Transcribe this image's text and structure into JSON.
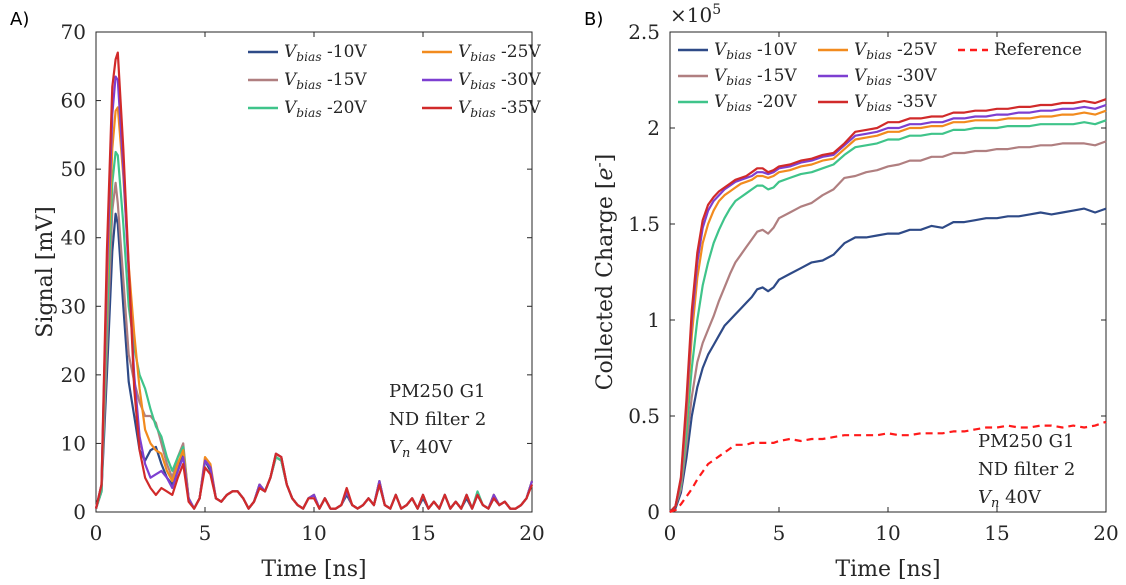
{
  "chart_data": [
    {
      "panel_label": "A)",
      "type": "line",
      "xlabel": "Time [ns]",
      "ylabel": "Signal [mV]",
      "xlim": [
        0,
        20
      ],
      "ylim": [
        0,
        70
      ],
      "xticks": [
        "0",
        "5",
        "10",
        "15",
        "20"
      ],
      "yticks": [
        "0",
        "10",
        "20",
        "30",
        "40",
        "50",
        "60",
        "70"
      ],
      "grid": false,
      "legend": "top-right",
      "annotations": [
        "PM250 G1",
        "ND filter 2",
        "V_n 40V"
      ],
      "x": [
        0,
        0.25,
        0.5,
        0.75,
        0.9,
        1.0,
        1.25,
        1.5,
        1.75,
        2.0,
        2.25,
        2.5,
        2.75,
        3.0,
        3.25,
        3.5,
        3.75,
        4.0,
        4.25,
        4.5,
        4.75,
        5.0,
        5.25,
        5.5,
        5.75,
        6.0,
        6.25,
        6.5,
        6.75,
        7.0,
        7.25,
        7.5,
        7.75,
        8.0,
        8.25,
        8.5,
        8.75,
        9.0,
        9.25,
        9.5,
        9.75,
        10.0,
        10.25,
        10.5,
        10.75,
        11.0,
        11.25,
        11.5,
        11.75,
        12.0,
        12.25,
        12.5,
        12.75,
        13.0,
        13.25,
        13.5,
        13.75,
        14.0,
        14.25,
        14.5,
        14.75,
        15.0,
        15.25,
        15.5,
        15.75,
        16.0,
        16.25,
        16.5,
        16.75,
        17.0,
        17.25,
        17.5,
        17.75,
        18.0,
        18.25,
        18.5,
        18.75,
        19.0,
        19.25,
        19.5,
        19.75,
        20.0
      ],
      "series": [
        {
          "name": "V_bias -10V",
          "color": "#2e4a87",
          "dash": false,
          "values": [
            0.5,
            3,
            20,
            38,
            43.5,
            42,
            30,
            19,
            14,
            9,
            7.5,
            9,
            9.5,
            7,
            5,
            4,
            6,
            8.5,
            2,
            0.5,
            2,
            7.5,
            6,
            2,
            1.5,
            2.5,
            3,
            3,
            2,
            0.5,
            1.5,
            3.5,
            3,
            5,
            8,
            7.5,
            4,
            2,
            1,
            0.5,
            2,
            2.5,
            0.5,
            2,
            0.5,
            0.5,
            1,
            2.5,
            1,
            0.5,
            1,
            2,
            1,
            4,
            1,
            0.5,
            2.5,
            0.5,
            1,
            2,
            0.5,
            2,
            0.5,
            1.5,
            0.5,
            2.5,
            0.5,
            1.5,
            0.5,
            2,
            0.5,
            2.5,
            1,
            0.5,
            2,
            1,
            1.5,
            0.5,
            0.5,
            1,
            2,
            4.5
          ]
        },
        {
          "name": "V_bias -15V",
          "color": "#b07f80",
          "dash": false,
          "values": [
            0.5,
            3,
            24,
            44,
            48,
            45,
            34,
            23,
            19,
            16,
            14,
            14,
            13,
            10,
            7,
            5,
            8,
            10,
            2,
            0.5,
            2,
            7.5,
            6.5,
            2,
            1.5,
            2.5,
            3,
            3,
            2,
            0.5,
            1.5,
            4,
            3,
            5,
            8,
            7.5,
            4,
            2,
            1,
            0.5,
            2,
            2.5,
            0.5,
            2,
            0.5,
            0.5,
            1,
            3,
            1,
            0.5,
            1,
            2,
            1,
            4.5,
            1,
            0.5,
            2.5,
            0.5,
            1,
            2,
            0.5,
            2.5,
            0.5,
            1.5,
            0.5,
            2.5,
            0.5,
            1.5,
            0.5,
            2.5,
            0.5,
            2.5,
            1,
            0.5,
            2.5,
            1,
            1.5,
            0.5,
            0.5,
            1,
            2,
            4.5
          ]
        },
        {
          "name": "V_bias -20V",
          "color": "#3fc48a",
          "dash": false,
          "values": [
            0.5,
            3,
            28,
            48,
            52.5,
            52,
            42,
            30,
            24,
            20,
            18,
            15,
            12.5,
            11,
            8,
            6,
            8,
            9.5,
            2,
            0.5,
            2,
            7.5,
            6.5,
            2,
            1.5,
            2.5,
            3,
            3,
            2,
            0.5,
            1.5,
            4,
            3,
            5,
            8,
            7.5,
            4,
            2,
            1,
            0.5,
            2,
            2.5,
            0.5,
            2,
            0.5,
            0.5,
            1,
            3,
            1,
            0.5,
            1,
            2,
            1,
            4.5,
            1,
            0.5,
            2.5,
            0.5,
            1,
            2,
            0.5,
            2.5,
            0.5,
            1.5,
            0.5,
            2.5,
            0.5,
            1.5,
            0.5,
            2.5,
            0.5,
            3,
            1,
            0.5,
            2.5,
            1,
            1.5,
            0.5,
            0.5,
            1,
            2,
            4.5
          ]
        },
        {
          "name": "V_bias -25V",
          "color": "#f28b1e",
          "dash": false,
          "values": [
            0.5,
            4,
            32,
            53,
            58.5,
            59,
            49,
            36,
            26,
            18,
            12,
            10,
            9,
            8.5,
            6,
            4.5,
            7,
            9,
            2,
            0.5,
            2,
            8,
            7,
            2,
            1.5,
            2.5,
            3,
            3,
            2,
            0.5,
            1.5,
            4,
            3,
            5,
            8.5,
            8,
            4,
            2,
            1,
            0.5,
            2,
            2.5,
            0.5,
            2,
            0.5,
            0.5,
            1,
            3,
            1,
            0.5,
            1,
            2,
            1,
            4.5,
            1,
            0.5,
            2.5,
            0.5,
            1,
            2,
            0.5,
            2.5,
            0.5,
            1.5,
            0.5,
            2.5,
            0.5,
            1.5,
            0.5,
            2.5,
            0.5,
            2.5,
            1,
            0.5,
            2.5,
            1,
            1.5,
            0.5,
            0.5,
            1,
            2,
            4.5
          ]
        },
        {
          "name": "V_bias -30V",
          "color": "#7d3fd1",
          "dash": false,
          "values": [
            0.5,
            4,
            35,
            58,
            63.5,
            63,
            50,
            35,
            20,
            11,
            7,
            5,
            5.5,
            6,
            5,
            3.5,
            6,
            8,
            2,
            0.5,
            2,
            7.5,
            6.5,
            2,
            1.5,
            2.5,
            3,
            3,
            2,
            0.5,
            1.5,
            4,
            3,
            5,
            8.5,
            8,
            4,
            2,
            1,
            0.5,
            2,
            2.5,
            0.5,
            2,
            0.5,
            0.5,
            1,
            3,
            1,
            0.5,
            1,
            2,
            1,
            4.5,
            1,
            0.5,
            2.5,
            0.5,
            1,
            2,
            0.5,
            2.5,
            0.5,
            1.5,
            0.5,
            2.5,
            0.5,
            1.5,
            0.5,
            2.5,
            0.5,
            2.5,
            1,
            0.5,
            2.5,
            1,
            1.5,
            0.5,
            0.5,
            1,
            2,
            4.5
          ]
        },
        {
          "name": "V_bias -35V",
          "color": "#d12a2a",
          "dash": false,
          "values": [
            0.5,
            4,
            38,
            62,
            66,
            67,
            53,
            36,
            18,
            9,
            5,
            3.5,
            2.5,
            3.5,
            3,
            2.5,
            5,
            7,
            1.5,
            0.5,
            2,
            6.5,
            5.5,
            2,
            1.5,
            2.5,
            3,
            3,
            2,
            0.5,
            1.5,
            3.5,
            3,
            5,
            8.5,
            8,
            4,
            2,
            1,
            0.5,
            2,
            2,
            0.5,
            2,
            0.5,
            0.5,
            1,
            3.5,
            1,
            0.5,
            1,
            2,
            1,
            4,
            1,
            0.5,
            2.5,
            0.5,
            1,
            2,
            0.5,
            2.5,
            0.5,
            1.5,
            0.5,
            2.5,
            0.5,
            1.5,
            0.5,
            2.5,
            0.5,
            2.5,
            1,
            0.5,
            2,
            1,
            1.5,
            0.5,
            0.5,
            1,
            2,
            4
          ]
        }
      ]
    },
    {
      "panel_label": "B)",
      "type": "line",
      "xlabel": "Time [ns]",
      "ylabel": "Collected Charge [e^-]",
      "multiplier": "×10^5",
      "xlim": [
        0,
        20
      ],
      "ylim": [
        0,
        2.5
      ],
      "xticks": [
        "0",
        "5",
        "10",
        "15",
        "20"
      ],
      "yticks": [
        "0",
        "0.5",
        "1",
        "1.5",
        "2",
        "2.5"
      ],
      "grid": false,
      "legend": "top-right",
      "annotations": [
        "PM250 G1",
        "ND filter 2",
        "V_n 40V"
      ],
      "x": [
        0,
        0.25,
        0.5,
        0.75,
        1.0,
        1.25,
        1.5,
        1.75,
        2.0,
        2.25,
        2.5,
        2.75,
        3.0,
        3.25,
        3.5,
        3.75,
        4.0,
        4.25,
        4.5,
        4.75,
        5.0,
        5.5,
        6.0,
        6.5,
        7.0,
        7.5,
        8.0,
        8.5,
        9.0,
        9.5,
        10.0,
        10.5,
        11.0,
        11.5,
        12.0,
        12.5,
        13.0,
        13.5,
        14.0,
        14.5,
        15.0,
        15.5,
        16.0,
        16.5,
        17.0,
        17.5,
        18.0,
        18.5,
        19.0,
        19.5,
        20.0
      ],
      "series": [
        {
          "name": "V_bias -10V",
          "color": "#2e4a87",
          "dash": false,
          "values": [
            0,
            0.02,
            0.1,
            0.28,
            0.5,
            0.65,
            0.75,
            0.82,
            0.87,
            0.92,
            0.97,
            1.0,
            1.03,
            1.06,
            1.09,
            1.12,
            1.16,
            1.17,
            1.15,
            1.17,
            1.21,
            1.24,
            1.27,
            1.3,
            1.31,
            1.34,
            1.4,
            1.43,
            1.43,
            1.44,
            1.45,
            1.45,
            1.47,
            1.47,
            1.49,
            1.48,
            1.51,
            1.51,
            1.52,
            1.53,
            1.53,
            1.54,
            1.54,
            1.55,
            1.56,
            1.55,
            1.56,
            1.57,
            1.58,
            1.56,
            1.58
          ]
        },
        {
          "name": "V_bias -15V",
          "color": "#b07f80",
          "dash": false,
          "values": [
            0,
            0.03,
            0.12,
            0.35,
            0.6,
            0.78,
            0.88,
            0.95,
            1.02,
            1.1,
            1.17,
            1.24,
            1.3,
            1.34,
            1.38,
            1.42,
            1.46,
            1.47,
            1.45,
            1.48,
            1.53,
            1.56,
            1.59,
            1.61,
            1.65,
            1.68,
            1.74,
            1.75,
            1.77,
            1.78,
            1.8,
            1.81,
            1.83,
            1.83,
            1.85,
            1.85,
            1.87,
            1.87,
            1.88,
            1.88,
            1.89,
            1.89,
            1.9,
            1.9,
            1.91,
            1.91,
            1.92,
            1.92,
            1.92,
            1.91,
            1.93
          ]
        },
        {
          "name": "V_bias -20V",
          "color": "#3fc48a",
          "dash": false,
          "values": [
            0,
            0.03,
            0.14,
            0.42,
            0.75,
            1.0,
            1.18,
            1.3,
            1.4,
            1.47,
            1.53,
            1.58,
            1.62,
            1.64,
            1.66,
            1.68,
            1.7,
            1.7,
            1.68,
            1.69,
            1.72,
            1.74,
            1.76,
            1.77,
            1.79,
            1.81,
            1.86,
            1.9,
            1.91,
            1.92,
            1.94,
            1.94,
            1.96,
            1.96,
            1.97,
            1.97,
            1.99,
            1.99,
            2.0,
            2.0,
            2.0,
            2.01,
            2.01,
            2.01,
            2.02,
            2.02,
            2.02,
            2.02,
            2.03,
            2.02,
            2.04
          ]
        },
        {
          "name": "V_bias -25V",
          "color": "#f28b1e",
          "dash": false,
          "values": [
            0,
            0.03,
            0.16,
            0.5,
            0.92,
            1.22,
            1.4,
            1.5,
            1.57,
            1.62,
            1.65,
            1.67,
            1.69,
            1.71,
            1.72,
            1.73,
            1.75,
            1.75,
            1.74,
            1.75,
            1.77,
            1.78,
            1.8,
            1.81,
            1.83,
            1.84,
            1.89,
            1.94,
            1.95,
            1.96,
            1.98,
            1.98,
            2.0,
            2.0,
            2.01,
            2.01,
            2.03,
            2.03,
            2.04,
            2.04,
            2.04,
            2.05,
            2.05,
            2.05,
            2.06,
            2.06,
            2.07,
            2.07,
            2.08,
            2.07,
            2.09
          ]
        },
        {
          "name": "V_bias -30V",
          "color": "#7d3fd1",
          "dash": false,
          "values": [
            0,
            0.03,
            0.17,
            0.55,
            1.0,
            1.3,
            1.48,
            1.57,
            1.62,
            1.65,
            1.68,
            1.7,
            1.72,
            1.73,
            1.74,
            1.75,
            1.77,
            1.77,
            1.76,
            1.77,
            1.79,
            1.8,
            1.82,
            1.83,
            1.85,
            1.86,
            1.91,
            1.96,
            1.97,
            1.98,
            2.0,
            2.0,
            2.02,
            2.02,
            2.03,
            2.03,
            2.05,
            2.05,
            2.06,
            2.06,
            2.07,
            2.07,
            2.08,
            2.08,
            2.09,
            2.09,
            2.1,
            2.1,
            2.11,
            2.1,
            2.12
          ]
        },
        {
          "name": "V_bias -35V",
          "color": "#d12a2a",
          "dash": false,
          "values": [
            0,
            0.03,
            0.18,
            0.58,
            1.05,
            1.35,
            1.52,
            1.6,
            1.64,
            1.67,
            1.69,
            1.71,
            1.73,
            1.74,
            1.75,
            1.77,
            1.79,
            1.79,
            1.77,
            1.78,
            1.8,
            1.81,
            1.83,
            1.84,
            1.86,
            1.87,
            1.92,
            1.98,
            1.99,
            2.0,
            2.03,
            2.03,
            2.05,
            2.05,
            2.06,
            2.06,
            2.08,
            2.08,
            2.09,
            2.09,
            2.1,
            2.1,
            2.11,
            2.11,
            2.12,
            2.12,
            2.13,
            2.13,
            2.14,
            2.13,
            2.15
          ]
        },
        {
          "name": "Reference",
          "color": "#ff1a1a",
          "dash": true,
          "values": [
            0,
            0.01,
            0.04,
            0.08,
            0.12,
            0.17,
            0.21,
            0.25,
            0.27,
            0.29,
            0.31,
            0.33,
            0.35,
            0.35,
            0.35,
            0.36,
            0.36,
            0.36,
            0.36,
            0.36,
            0.37,
            0.38,
            0.37,
            0.38,
            0.38,
            0.39,
            0.4,
            0.4,
            0.4,
            0.4,
            0.41,
            0.4,
            0.4,
            0.41,
            0.41,
            0.41,
            0.42,
            0.42,
            0.43,
            0.44,
            0.44,
            0.45,
            0.44,
            0.44,
            0.45,
            0.45,
            0.44,
            0.45,
            0.44,
            0.45,
            0.47
          ]
        }
      ]
    }
  ]
}
